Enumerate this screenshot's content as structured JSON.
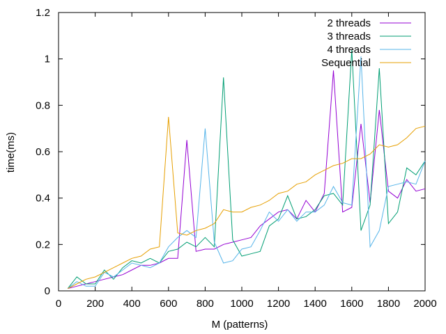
{
  "chart_data": {
    "type": "line",
    "title": "",
    "xlabel": "M (patterns)",
    "ylabel": "time(ms)",
    "xlim": [
      0,
      2000
    ],
    "ylim": [
      0,
      1.2
    ],
    "xticks": [
      0,
      200,
      400,
      600,
      800,
      1000,
      1200,
      1400,
      1600,
      1800,
      2000
    ],
    "yticks": [
      0,
      0.2,
      0.4,
      0.6,
      0.8,
      1,
      1.2
    ],
    "xtick_labels": [
      "0",
      "200",
      "400",
      "600",
      "800",
      "1000",
      "1200",
      "1400",
      "1600",
      "1800",
      "2000"
    ],
    "ytick_labels": [
      "0",
      "0.2",
      "0.4",
      "0.6",
      "0.8",
      "1",
      "1.2"
    ],
    "grid": false,
    "legend_position": "top-right",
    "x": [
      50,
      100,
      150,
      200,
      250,
      300,
      350,
      400,
      450,
      500,
      550,
      600,
      650,
      700,
      750,
      800,
      850,
      900,
      950,
      1000,
      1050,
      1100,
      1150,
      1200,
      1250,
      1300,
      1350,
      1400,
      1450,
      1500,
      1550,
      1600,
      1650,
      1700,
      1750,
      1800,
      1850,
      1900,
      1950,
      2000
    ],
    "series": [
      {
        "name": "2 threads",
        "color": "#9400d3",
        "values": [
          0.01,
          0.02,
          0.03,
          0.04,
          0.05,
          0.06,
          0.07,
          0.09,
          0.11,
          0.11,
          0.12,
          0.14,
          0.14,
          0.65,
          0.17,
          0.18,
          0.18,
          0.2,
          0.21,
          0.22,
          0.23,
          0.28,
          0.31,
          0.34,
          0.35,
          0.31,
          0.39,
          0.34,
          0.42,
          0.95,
          0.34,
          0.36,
          0.72,
          0.38,
          0.78,
          0.43,
          0.4,
          0.48,
          0.43,
          0.44
        ]
      },
      {
        "name": "3 threads",
        "color": "#009e73",
        "values": [
          0.01,
          0.06,
          0.03,
          0.03,
          0.09,
          0.05,
          0.1,
          0.13,
          0.12,
          0.14,
          0.12,
          0.17,
          0.18,
          0.21,
          0.19,
          0.23,
          0.19,
          0.92,
          0.22,
          0.15,
          0.16,
          0.17,
          0.28,
          0.31,
          0.41,
          0.31,
          0.32,
          0.35,
          0.41,
          0.42,
          0.37,
          1.04,
          0.26,
          0.37,
          0.96,
          0.29,
          0.34,
          0.53,
          0.5,
          0.56
        ]
      },
      {
        "name": "4 threads",
        "color": "#56b4e9",
        "values": [
          0.01,
          0.04,
          0.02,
          0.02,
          0.08,
          0.06,
          0.09,
          0.12,
          0.11,
          0.1,
          0.12,
          0.19,
          0.23,
          0.26,
          0.23,
          0.7,
          0.21,
          0.12,
          0.13,
          0.18,
          0.19,
          0.26,
          0.34,
          0.3,
          0.35,
          0.3,
          0.34,
          0.34,
          0.37,
          0.45,
          0.38,
          0.37,
          1.01,
          0.19,
          0.26,
          0.45,
          0.46,
          0.47,
          0.46,
          0.56
        ]
      },
      {
        "name": "Sequential",
        "color": "#e69f00",
        "values": [
          0.01,
          0.03,
          0.05,
          0.06,
          0.08,
          0.1,
          0.12,
          0.14,
          0.15,
          0.18,
          0.19,
          0.75,
          0.25,
          0.24,
          0.26,
          0.27,
          0.29,
          0.35,
          0.34,
          0.34,
          0.36,
          0.37,
          0.39,
          0.42,
          0.43,
          0.46,
          0.47,
          0.5,
          0.52,
          0.54,
          0.55,
          0.57,
          0.57,
          0.59,
          0.63,
          0.62,
          0.63,
          0.66,
          0.7,
          0.71
        ]
      }
    ]
  }
}
